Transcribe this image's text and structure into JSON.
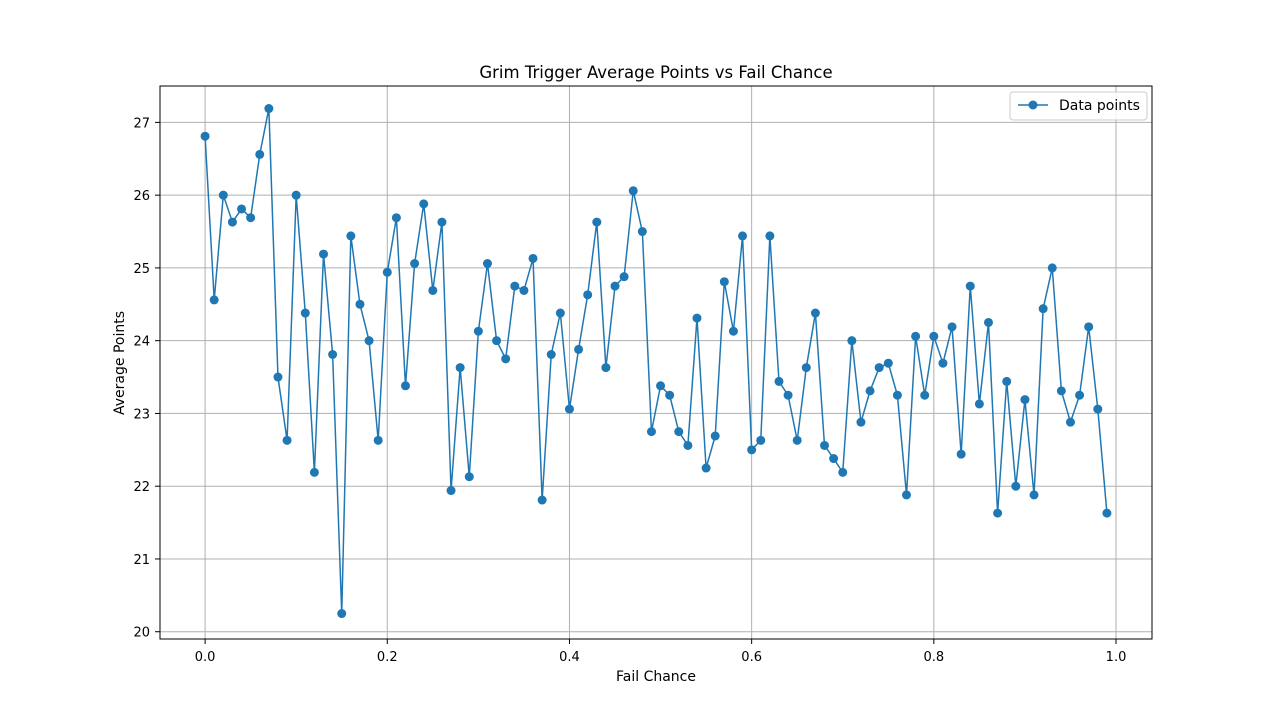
{
  "chart_data": {
    "type": "line",
    "title": "Grim Trigger Average Points vs Fail Chance",
    "xlabel": "Fail Chance",
    "ylabel": "Average Points",
    "xlim": [
      -0.0495,
      1.0395
    ],
    "ylim": [
      19.9,
      27.5
    ],
    "xticks": [
      0.0,
      0.2,
      0.4,
      0.6,
      0.8,
      1.0
    ],
    "xtick_labels": [
      "0.0",
      "0.2",
      "0.4",
      "0.6",
      "0.8",
      "1.0"
    ],
    "yticks": [
      20,
      21,
      22,
      23,
      24,
      25,
      26,
      27
    ],
    "ytick_labels": [
      "20",
      "21",
      "22",
      "23",
      "24",
      "25",
      "26",
      "27"
    ],
    "grid": true,
    "legend_position": "top-right",
    "color": "#1f77b4",
    "series": [
      {
        "name": "Data points",
        "marker": "circle",
        "x": [
          0.0,
          0.01,
          0.02,
          0.03,
          0.04,
          0.05,
          0.06,
          0.07,
          0.08,
          0.09,
          0.1,
          0.11,
          0.12,
          0.13,
          0.14,
          0.15,
          0.16,
          0.17,
          0.18,
          0.19,
          0.2,
          0.21,
          0.22,
          0.23,
          0.24,
          0.25,
          0.26,
          0.27,
          0.28,
          0.29,
          0.3,
          0.31,
          0.32,
          0.33,
          0.34,
          0.35,
          0.36,
          0.37,
          0.38,
          0.39,
          0.4,
          0.41,
          0.42,
          0.43,
          0.44,
          0.45,
          0.46,
          0.47,
          0.48,
          0.49,
          0.5,
          0.51,
          0.52,
          0.53,
          0.54,
          0.55,
          0.56,
          0.57,
          0.58,
          0.59,
          0.6,
          0.61,
          0.62,
          0.63,
          0.64,
          0.65,
          0.66,
          0.67,
          0.68,
          0.69,
          0.7,
          0.71,
          0.72,
          0.73,
          0.74,
          0.75,
          0.76,
          0.77,
          0.78,
          0.79,
          0.8,
          0.81,
          0.82,
          0.83,
          0.84,
          0.85,
          0.86,
          0.87,
          0.88,
          0.89,
          0.9,
          0.91,
          0.92,
          0.93,
          0.94,
          0.95,
          0.96,
          0.97,
          0.98,
          0.99
        ],
        "y": [
          26.81,
          24.56,
          26.0,
          25.63,
          25.81,
          25.69,
          26.56,
          27.19,
          23.5,
          22.63,
          26.0,
          24.38,
          22.19,
          25.19,
          23.81,
          20.25,
          25.44,
          24.5,
          24.0,
          22.63,
          24.94,
          25.69,
          23.38,
          25.06,
          25.88,
          24.69,
          25.63,
          21.94,
          23.63,
          22.13,
          24.13,
          25.06,
          24.0,
          23.75,
          24.75,
          24.69,
          25.13,
          21.81,
          23.81,
          24.38,
          23.06,
          23.88,
          24.63,
          25.63,
          23.63,
          24.75,
          24.88,
          26.06,
          25.5,
          22.75,
          23.38,
          23.25,
          22.75,
          22.56,
          24.31,
          22.25,
          22.69,
          24.81,
          24.13,
          25.44,
          22.5,
          22.63,
          25.44,
          23.44,
          23.25,
          22.63,
          23.63,
          24.38,
          22.56,
          22.38,
          22.19,
          24.0,
          22.88,
          23.31,
          23.63,
          23.69,
          23.25,
          21.88,
          24.06,
          23.25,
          24.06,
          23.69,
          24.19,
          22.44,
          24.75,
          23.13,
          24.25,
          21.63,
          23.44,
          22.0,
          23.19,
          21.88,
          24.44,
          25.0,
          23.31,
          22.88,
          23.25,
          24.19,
          23.06,
          21.63
        ]
      }
    ]
  }
}
